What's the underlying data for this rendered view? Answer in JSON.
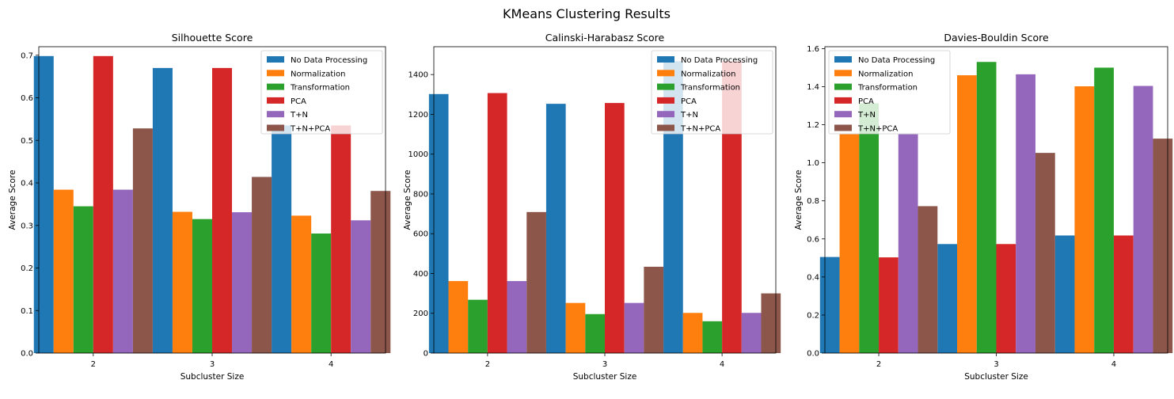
{
  "figure": {
    "title": "KMeans Clustering Results"
  },
  "series_names": [
    "No Data Processing",
    "Normalization",
    "Transformation",
    "PCA",
    "T+N",
    "T+N+PCA"
  ],
  "colors": [
    "#1f77b4",
    "#ff7f0e",
    "#2ca02c",
    "#d62728",
    "#9467bd",
    "#8c564b"
  ],
  "chart_data": [
    {
      "type": "bar",
      "title": "Silhouette Score",
      "xlabel": "Subcluster Size",
      "ylabel": "Average Score",
      "categories": [
        "2",
        "3",
        "4"
      ],
      "ylim": [
        0,
        0.72
      ],
      "yticks": [
        0.0,
        0.1,
        0.2,
        0.3,
        0.4,
        0.5,
        0.6,
        0.7
      ],
      "ytick_labels": [
        "0.0",
        "0.1",
        "0.2",
        "0.3",
        "0.4",
        "0.5",
        "0.6",
        "0.7"
      ],
      "legend": "top-right",
      "series": [
        {
          "name": "No Data Processing",
          "values": [
            0.698,
            0.67,
            0.535
          ]
        },
        {
          "name": "Normalization",
          "values": [
            0.384,
            0.332,
            0.323
          ]
        },
        {
          "name": "Transformation",
          "values": [
            0.345,
            0.315,
            0.281
          ]
        },
        {
          "name": "PCA",
          "values": [
            0.698,
            0.67,
            0.535
          ]
        },
        {
          "name": "T+N",
          "values": [
            0.384,
            0.331,
            0.312
          ]
        },
        {
          "name": "T+N+PCA",
          "values": [
            0.528,
            0.414,
            0.381
          ]
        }
      ]
    },
    {
      "type": "bar",
      "title": "Calinski-Harabasz Score",
      "xlabel": "Subcluster Size",
      "ylabel": "Average Score",
      "categories": [
        "2",
        "3",
        "4"
      ],
      "ylim": [
        0,
        1540
      ],
      "yticks": [
        0,
        200,
        400,
        600,
        800,
        1000,
        1200,
        1400
      ],
      "ytick_labels": [
        "0",
        "200",
        "400",
        "600",
        "800",
        "1000",
        "1200",
        "1400"
      ],
      "legend": "top-right",
      "series": [
        {
          "name": "No Data Processing",
          "values": [
            1302,
            1253,
            1467
          ]
        },
        {
          "name": "Normalization",
          "values": [
            362,
            252,
            202
          ]
        },
        {
          "name": "Transformation",
          "values": [
            268,
            196,
            160
          ]
        },
        {
          "name": "PCA",
          "values": [
            1307,
            1257,
            1467
          ]
        },
        {
          "name": "T+N",
          "values": [
            362,
            252,
            202
          ]
        },
        {
          "name": "T+N+PCA",
          "values": [
            709,
            434,
            300
          ]
        }
      ]
    },
    {
      "type": "bar",
      "title": "Davies-Bouldin Score",
      "xlabel": "Subcluster Size",
      "ylabel": "Average Score",
      "categories": [
        "2",
        "3",
        "4"
      ],
      "ylim": [
        0,
        1.61
      ],
      "yticks": [
        0.0,
        0.2,
        0.4,
        0.6,
        0.8,
        1.0,
        1.2,
        1.4,
        1.6
      ],
      "ytick_labels": [
        "0.0",
        "0.2",
        "0.4",
        "0.6",
        "0.8",
        "1.0",
        "1.2",
        "1.4",
        "1.6"
      ],
      "legend": "top-left",
      "series": [
        {
          "name": "No Data Processing",
          "values": [
            0.505,
            0.573,
            0.618
          ]
        },
        {
          "name": "Normalization",
          "values": [
            1.15,
            1.46,
            1.402
          ]
        },
        {
          "name": "Transformation",
          "values": [
            1.313,
            1.53,
            1.5
          ]
        },
        {
          "name": "PCA",
          "values": [
            0.503,
            0.573,
            0.618
          ]
        },
        {
          "name": "T+N",
          "values": [
            1.15,
            1.465,
            1.404
          ]
        },
        {
          "name": "T+N+PCA",
          "values": [
            0.772,
            1.052,
            1.127
          ]
        }
      ]
    }
  ]
}
